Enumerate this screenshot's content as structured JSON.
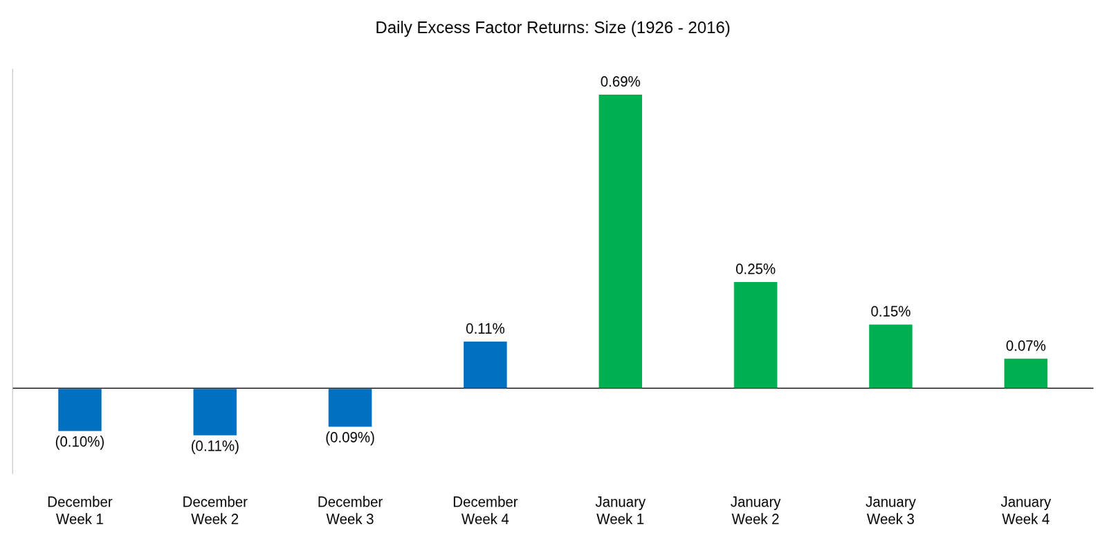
{
  "chart_data": {
    "type": "bar",
    "title": "Daily Excess Factor Returns: Size (1926 - 2016)",
    "categories": [
      "December Week 1",
      "December Week 2",
      "December Week 3",
      "December Week 4",
      "January Week 1",
      "January Week 2",
      "January Week 3",
      "January Week 4"
    ],
    "values": [
      -0.1,
      -0.11,
      -0.09,
      0.11,
      0.69,
      0.25,
      0.15,
      0.07
    ],
    "value_labels": [
      "(0.10%)",
      "(0.11%)",
      "(0.09%)",
      "0.11%",
      "0.69%",
      "0.25%",
      "0.15%",
      "0.07%"
    ],
    "colors": [
      "#0070c0",
      "#0070c0",
      "#0070c0",
      "#0070c0",
      "#00b050",
      "#00b050",
      "#00b050",
      "#00b050"
    ],
    "ylim": [
      -0.2,
      0.75
    ],
    "yticks": [
      0
    ],
    "grid": true,
    "data_labels": true,
    "tick_labels": "x"
  }
}
